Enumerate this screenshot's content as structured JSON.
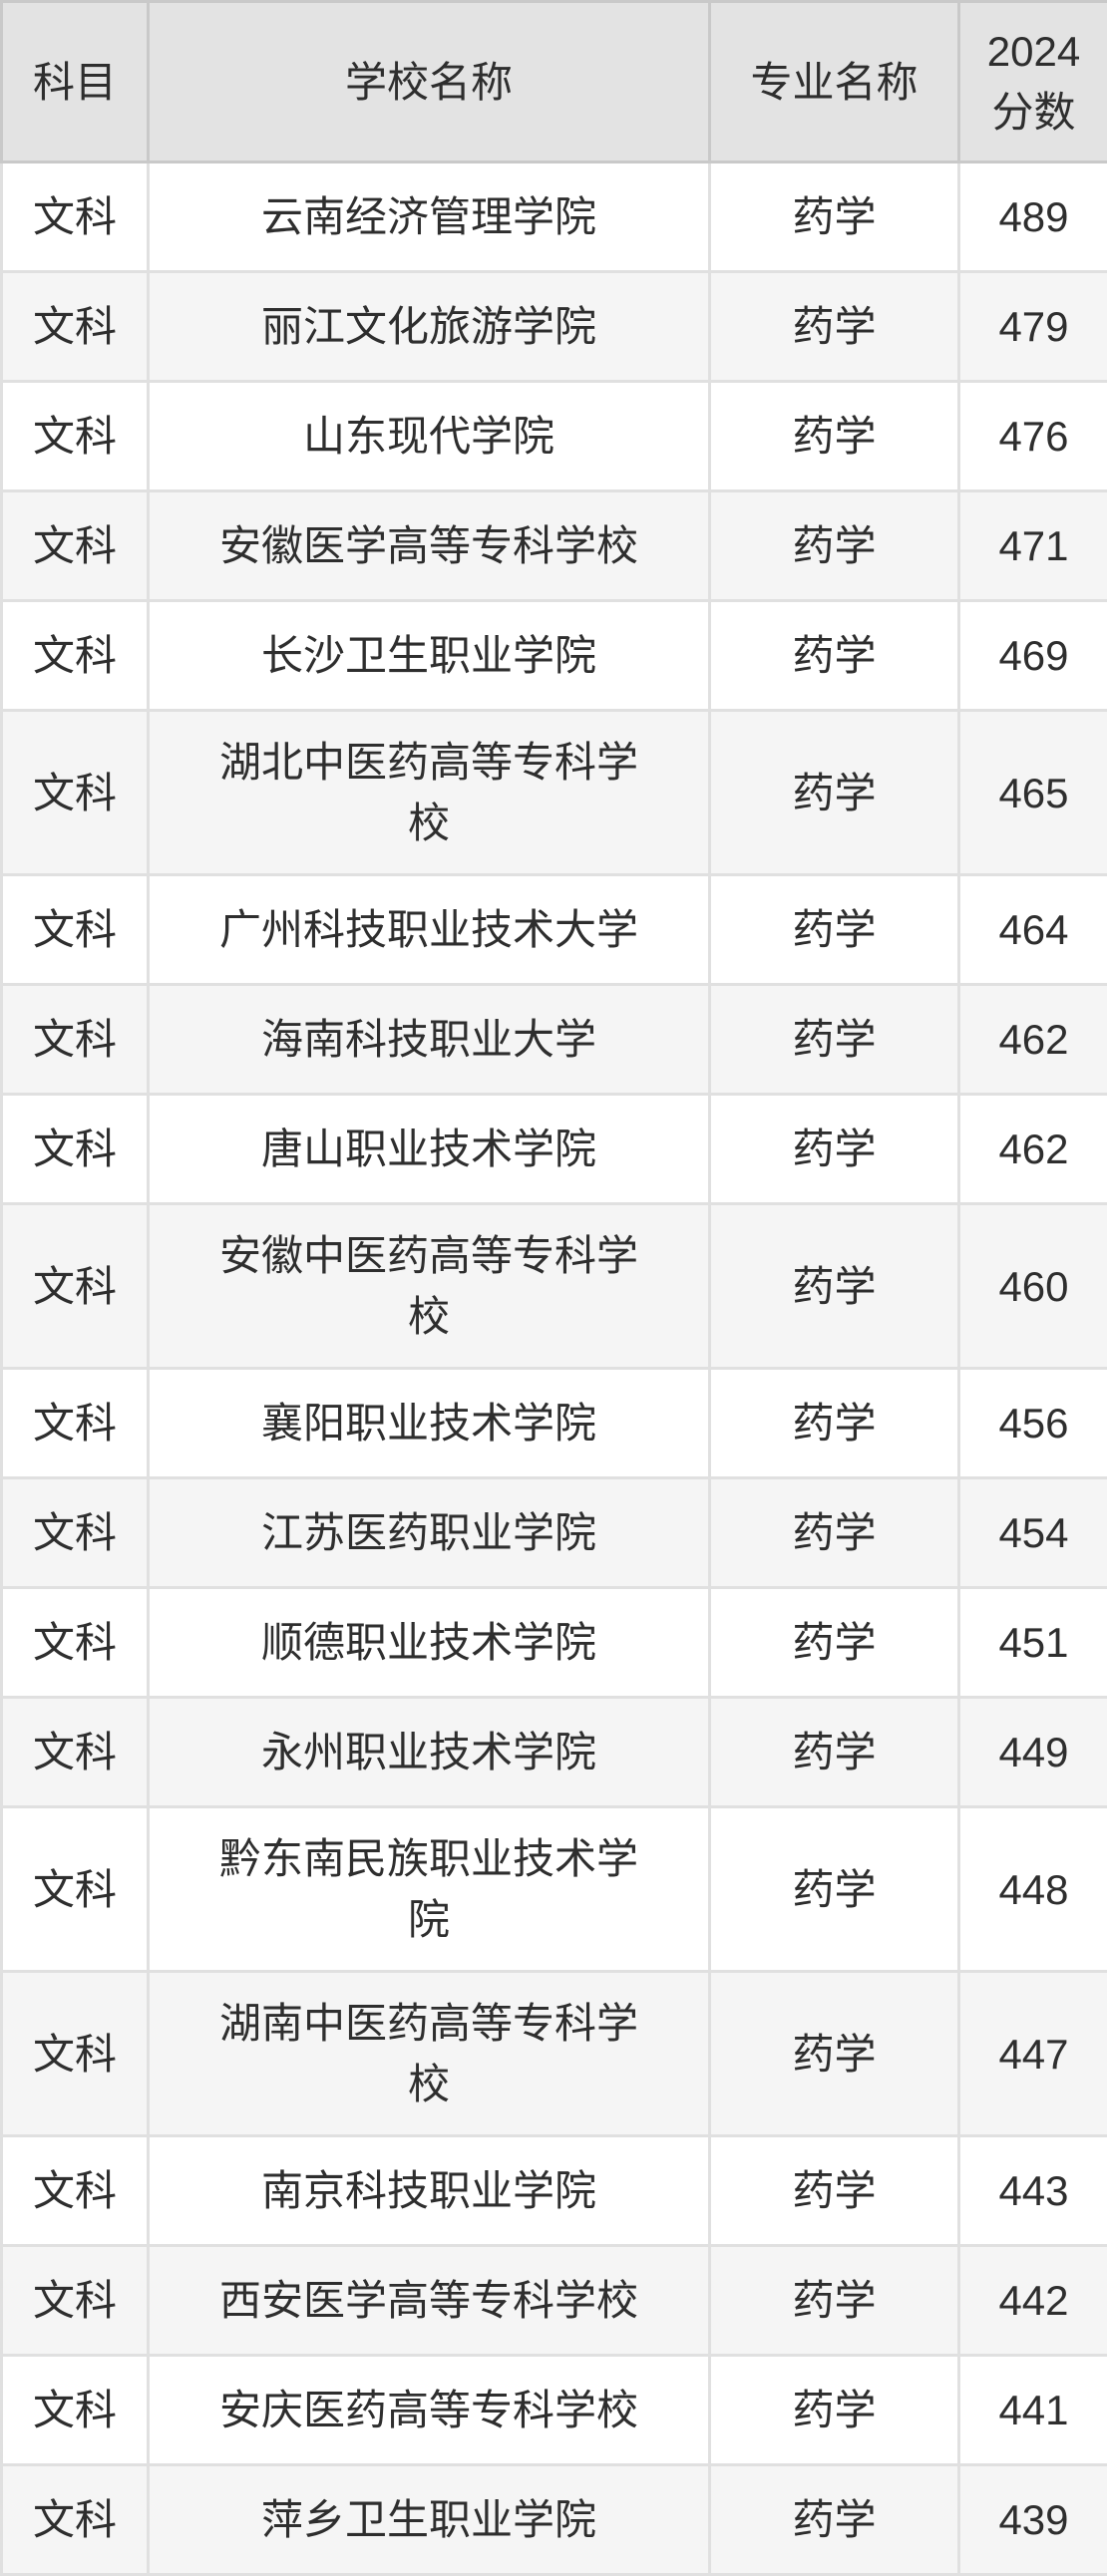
{
  "chart_data": {
    "type": "table",
    "columns": [
      "科目",
      "学校名称",
      "专业名称",
      "2024分数"
    ],
    "rows": [
      [
        "文科",
        "云南经济管理学院",
        "药学",
        489
      ],
      [
        "文科",
        "丽江文化旅游学院",
        "药学",
        479
      ],
      [
        "文科",
        "山东现代学院",
        "药学",
        476
      ],
      [
        "文科",
        "安徽医学高等专科学校",
        "药学",
        471
      ],
      [
        "文科",
        "长沙卫生职业学院",
        "药学",
        469
      ],
      [
        "文科",
        "湖北中医药高等专科学校",
        "药学",
        465
      ],
      [
        "文科",
        "广州科技职业技术大学",
        "药学",
        464
      ],
      [
        "文科",
        "海南科技职业大学",
        "药学",
        462
      ],
      [
        "文科",
        "唐山职业技术学院",
        "药学",
        462
      ],
      [
        "文科",
        "安徽中医药高等专科学校",
        "药学",
        460
      ],
      [
        "文科",
        "襄阳职业技术学院",
        "药学",
        456
      ],
      [
        "文科",
        "江苏医药职业学院",
        "药学",
        454
      ],
      [
        "文科",
        "顺德职业技术学院",
        "药学",
        451
      ],
      [
        "文科",
        "永州职业技术学院",
        "药学",
        449
      ],
      [
        "文科",
        "黔东南民族职业技术学院",
        "药学",
        448
      ],
      [
        "文科",
        "湖南中医药高等专科学校",
        "药学",
        447
      ],
      [
        "文科",
        "南京科技职业学院",
        "药学",
        443
      ],
      [
        "文科",
        "西安医学高等专科学校",
        "药学",
        442
      ],
      [
        "文科",
        "安庆医药高等专科学校",
        "药学",
        441
      ],
      [
        "文科",
        "萍乡卫生职业学院",
        "药学",
        439
      ]
    ],
    "layout": {
      "grid": true,
      "striped_rows": true
    },
    "colors": {
      "header_bg": "#e3e3e3",
      "header_border": "#c9c9c9",
      "row_alt_bg": "#f5f5f5",
      "body_border": "#e0e0e0",
      "text": "#2e2e2e"
    }
  }
}
